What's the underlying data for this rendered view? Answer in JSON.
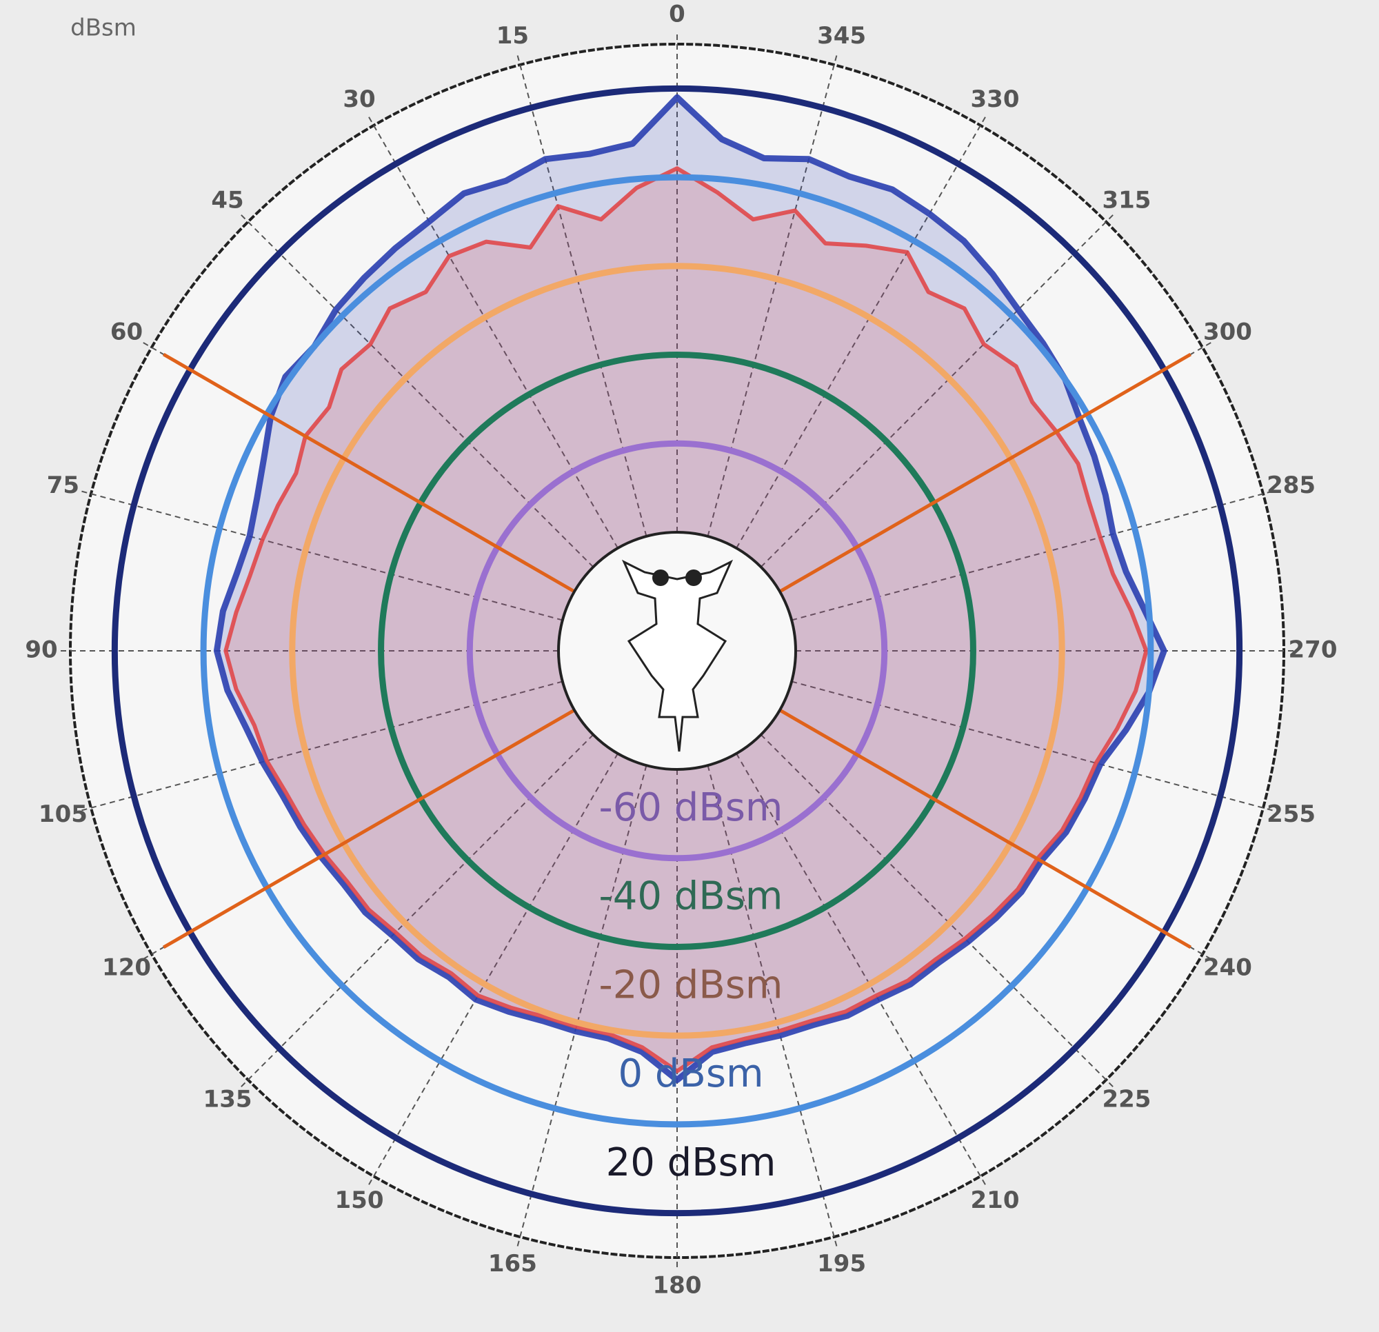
{
  "chart_data": {
    "type": "polar",
    "radial_unit_label": "dBsm",
    "theta_direction": "counterclockwise",
    "theta_zero": "top",
    "rlim": [
      -80,
      30
    ],
    "thetaticks": [
      0,
      15,
      30,
      45,
      60,
      75,
      90,
      105,
      120,
      135,
      150,
      165,
      180,
      195,
      210,
      225,
      240,
      255,
      270,
      285,
      300,
      315,
      330,
      345
    ],
    "rings": [
      {
        "value": -60,
        "label": "-60 dBsm",
        "color": "#9a70d0",
        "label_color": "#7a5aa8"
      },
      {
        "value": -40,
        "label": "-40 dBsm",
        "color": "#1f7a5a",
        "label_color": "#2f6a55"
      },
      {
        "value": -20,
        "label": "-20 dBsm",
        "color": "#f2a866",
        "label_color": "#8a5a4a"
      },
      {
        "value": 0,
        "label": "0 dBsm",
        "color": "#4a8ede",
        "label_color": "#3b62a8"
      },
      {
        "value": 20,
        "label": "20 dBsm",
        "color": "#1c2a78",
        "label_color": "#1a1a2a"
      }
    ],
    "sector_lines": {
      "angles": [
        60,
        120,
        240,
        300
      ],
      "color": "#e0621a"
    },
    "theta": [
      0,
      5,
      10,
      15,
      20,
      25,
      30,
      35,
      40,
      45,
      50,
      55,
      60,
      65,
      70,
      75,
      80,
      85,
      90,
      95,
      100,
      105,
      110,
      115,
      120,
      125,
      130,
      135,
      140,
      145,
      150,
      155,
      160,
      165,
      170,
      175,
      180,
      185,
      190,
      195,
      200,
      205,
      210,
      215,
      220,
      225,
      230,
      235,
      240,
      245,
      250,
      255,
      260,
      265,
      270,
      275,
      280,
      285,
      290,
      295,
      300,
      305,
      310,
      315,
      320,
      325,
      330,
      335,
      340,
      345,
      350,
      355
    ],
    "series": [
      {
        "color": "#2a3fb0",
        "values": [
          18,
          8,
          7,
          8,
          6,
          7,
          5,
          4,
          3,
          2,
          0,
          1,
          -1,
          -4,
          -6,
          -7,
          -6,
          -4,
          -3,
          -5,
          -8,
          -10,
          -12,
          -13,
          -14,
          -15,
          -15,
          -16,
          -16,
          -17,
          -16,
          -17,
          -18,
          -18,
          -18,
          -16,
          -10,
          -16,
          -17,
          -17,
          -17,
          -16,
          -16,
          -15,
          -15,
          -14,
          -13,
          -12,
          -12,
          -10,
          -9,
          -8,
          -4,
          0,
          3,
          -1,
          -4,
          -5,
          -4,
          -3,
          -2,
          0,
          1,
          2,
          4,
          6,
          7,
          8,
          7,
          8,
          6,
          9
        ]
      },
      {
        "color": "#e0484a",
        "values": [
          2,
          -2,
          -8,
          -3,
          -10,
          -5,
          -4,
          -8,
          -6,
          -9,
          -8,
          -11,
          -10,
          -12,
          -11,
          -10,
          -9,
          -7,
          -5,
          -7,
          -10,
          -11,
          -13,
          -14,
          -15,
          -16,
          -16,
          -17,
          -17,
          -18,
          -17,
          -18,
          -19,
          -19,
          -19,
          -17,
          -12,
          -17,
          -18,
          -18,
          -18,
          -17,
          -17,
          -16,
          -16,
          -15,
          -14,
          -13,
          -13,
          -11,
          -10,
          -9,
          -6,
          -3,
          -1,
          -4,
          -7,
          -8,
          -8,
          -7,
          -8,
          -9,
          -7,
          -9,
          -6,
          -8,
          -3,
          -6,
          -9,
          -4,
          -8,
          -3
        ]
      }
    ]
  }
}
